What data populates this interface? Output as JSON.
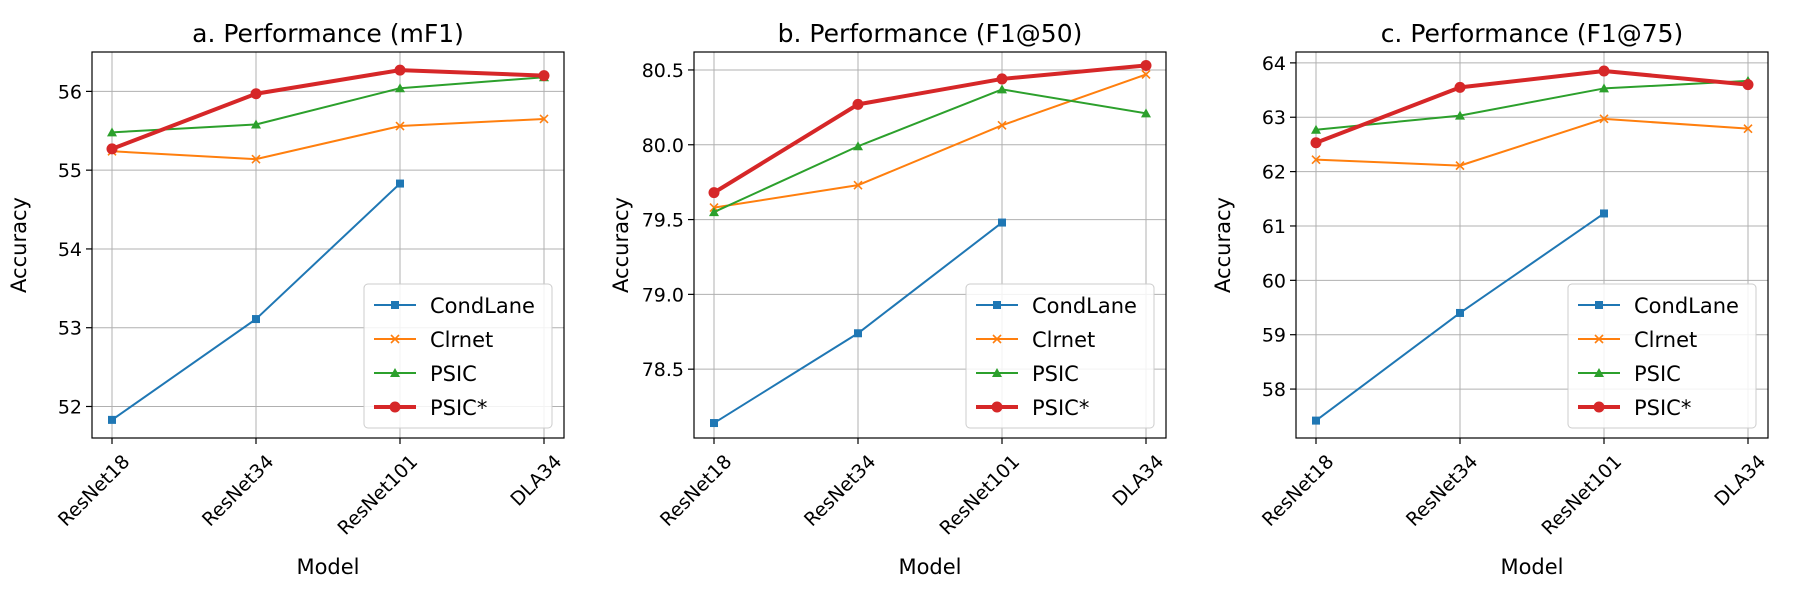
{
  "chart_data": [
    {
      "type": "line",
      "title": "a. Performance (mF1)",
      "xlabel": "Model",
      "ylabel": "Accuracy",
      "categories": [
        "ResNet18",
        "ResNet34",
        "ResNet101",
        "DLA34"
      ],
      "ylim": [
        51.6,
        56.5
      ],
      "yticks": [
        52,
        53,
        54,
        55,
        56
      ],
      "ytick_labels": [
        "52",
        "53",
        "54",
        "55",
        "56"
      ],
      "grid": true,
      "legend": "lower-right",
      "series": [
        {
          "name": "CondLane",
          "color": "#1f77b4",
          "marker": "square",
          "values": [
            51.83,
            53.11,
            54.83,
            null
          ]
        },
        {
          "name": "Clrnet",
          "color": "#ff7f0e",
          "marker": "x",
          "values": [
            55.24,
            55.14,
            55.56,
            55.65
          ]
        },
        {
          "name": "PSIC",
          "color": "#2ca02c",
          "marker": "triangle",
          "values": [
            55.48,
            55.58,
            56.04,
            56.18
          ]
        },
        {
          "name": "PSIC*",
          "color": "#d62728",
          "marker": "circle",
          "bold": true,
          "values": [
            55.27,
            55.97,
            56.27,
            56.2
          ]
        }
      ]
    },
    {
      "type": "line",
      "title": "b. Performance (F1@50)",
      "xlabel": "Model",
      "ylabel": "Accuracy",
      "categories": [
        "ResNet18",
        "ResNet34",
        "ResNet101",
        "DLA34"
      ],
      "ylim": [
        78.04,
        80.62
      ],
      "yticks": [
        78.5,
        79.0,
        79.5,
        80.0,
        80.5
      ],
      "ytick_labels": [
        "78.5",
        "79.0",
        "79.5",
        "80.0",
        "80.5"
      ],
      "grid": true,
      "legend": "lower-right",
      "series": [
        {
          "name": "CondLane",
          "color": "#1f77b4",
          "marker": "square",
          "values": [
            78.14,
            78.74,
            79.48,
            null
          ]
        },
        {
          "name": "Clrnet",
          "color": "#ff7f0e",
          "marker": "x",
          "values": [
            79.58,
            79.73,
            80.13,
            80.47
          ]
        },
        {
          "name": "PSIC",
          "color": "#2ca02c",
          "marker": "triangle",
          "values": [
            79.55,
            79.99,
            80.37,
            80.21
          ]
        },
        {
          "name": "PSIC*",
          "color": "#d62728",
          "marker": "circle",
          "bold": true,
          "values": [
            79.68,
            80.27,
            80.44,
            80.53
          ]
        }
      ]
    },
    {
      "type": "line",
      "title": "c. Performance (F1@75)",
      "xlabel": "Model",
      "ylabel": "Accuracy",
      "categories": [
        "ResNet18",
        "ResNet34",
        "ResNet101",
        "DLA34"
      ],
      "ylim": [
        57.1,
        64.2
      ],
      "yticks": [
        58,
        59,
        60,
        61,
        62,
        63,
        64
      ],
      "ytick_labels": [
        "58",
        "59",
        "60",
        "61",
        "62",
        "63",
        "64"
      ],
      "grid": true,
      "legend": "lower-right",
      "series": [
        {
          "name": "CondLane",
          "color": "#1f77b4",
          "marker": "square",
          "values": [
            57.42,
            59.4,
            61.23,
            null
          ]
        },
        {
          "name": "Clrnet",
          "color": "#ff7f0e",
          "marker": "x",
          "values": [
            62.22,
            62.11,
            62.97,
            62.79
          ]
        },
        {
          "name": "PSIC",
          "color": "#2ca02c",
          "marker": "triangle",
          "values": [
            62.77,
            63.03,
            63.53,
            63.67
          ]
        },
        {
          "name": "PSIC*",
          "color": "#d62728",
          "marker": "circle",
          "bold": true,
          "values": [
            62.53,
            63.55,
            63.85,
            63.6
          ]
        }
      ]
    }
  ]
}
